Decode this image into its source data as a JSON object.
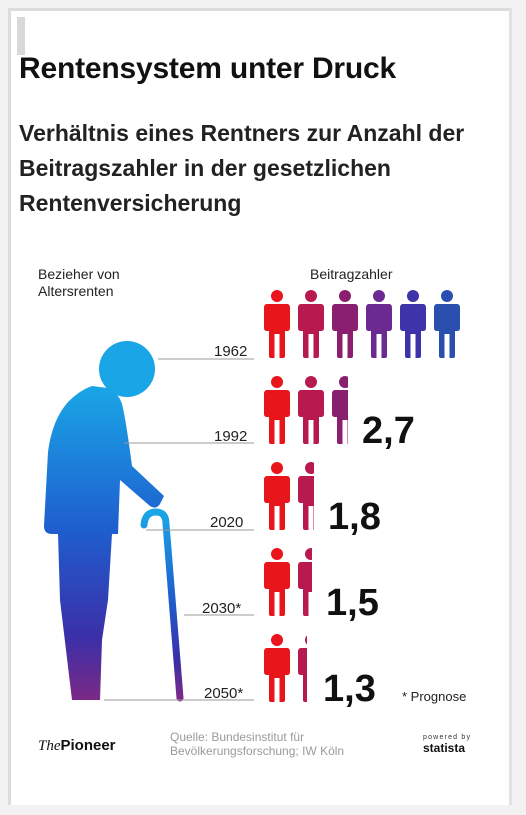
{
  "header": {
    "title": "Rentensystem unter Druck",
    "subtitle": "Verhältnis eines Rentners zur Anzahl der Beitragszahler in der gesetzlichen Rentenversicherung"
  },
  "labels": {
    "left": "Bezieher von Altersrenten",
    "right": "Beitragzahler"
  },
  "chart_data": {
    "type": "pictogram",
    "title": "Verhältnis eines Rentners zur Anzahl der Beitragszahler in der gesetzlichen Rentenversicherung",
    "categories": [
      "1962",
      "1992",
      "2020",
      "2030*",
      "2050*"
    ],
    "values": [
      6.0,
      2.7,
      1.8,
      1.5,
      1.3
    ],
    "value_labels": [
      "",
      "2,7",
      "1,8",
      "1,5",
      "1,3"
    ],
    "colors": [
      "#e8151b",
      "#b81a4f",
      "#8b1f6f",
      "#6a2a92",
      "#3c34a8",
      "#2a4fae"
    ]
  },
  "footer": {
    "note": "* Prognose",
    "brand_italic": "The",
    "brand_bold": "Pioneer",
    "source": "Quelle: Bundesinstitut für Bevölkerungsforschung; IW Köln",
    "statista_powered": "powered by",
    "statista_name": "statista"
  }
}
